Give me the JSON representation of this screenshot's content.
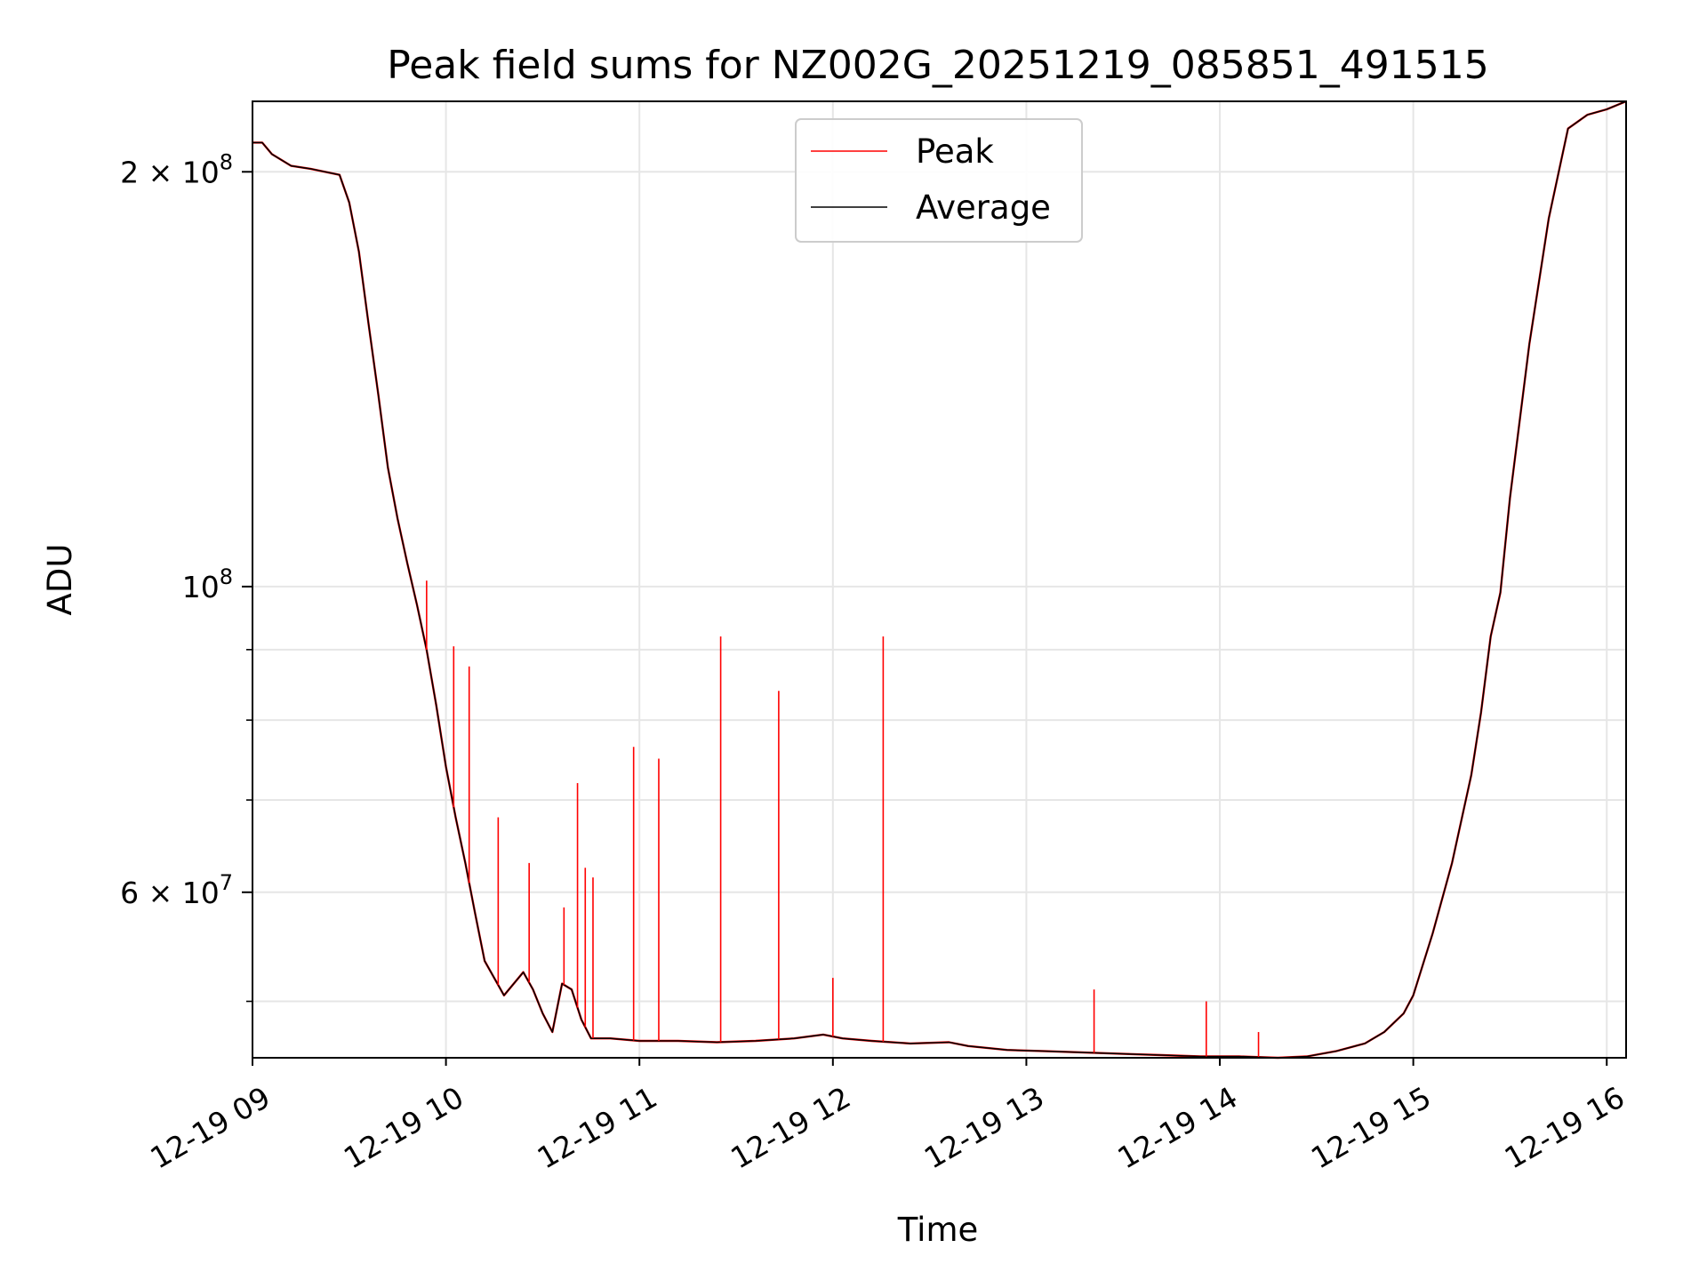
{
  "chart_data": {
    "type": "line",
    "title": "Peak field sums for NZ002G_20251219_085851_491515",
    "xlabel": "Time",
    "ylabel": "ADU",
    "yscale": "log",
    "xlim": [
      9.0,
      16.1
    ],
    "ylim": [
      45500000,
      225000000
    ],
    "grid": true,
    "legend_position": "top-center",
    "x_ticks": [
      {
        "value": 9,
        "label": "12-19 09"
      },
      {
        "value": 10,
        "label": "12-19 10"
      },
      {
        "value": 11,
        "label": "12-19 11"
      },
      {
        "value": 12,
        "label": "12-19 12"
      },
      {
        "value": 13,
        "label": "12-19 13"
      },
      {
        "value": 14,
        "label": "12-19 14"
      },
      {
        "value": 15,
        "label": "12-19 15"
      },
      {
        "value": 16,
        "label": "12-19 16"
      }
    ],
    "y_ticks_labeled": [
      {
        "value": 200000000,
        "base": "2 × 10",
        "exp": "8"
      },
      {
        "value": 100000000,
        "base": "10",
        "exp": "8"
      },
      {
        "value": 60000000,
        "base": "6 × 10",
        "exp": "7"
      }
    ],
    "y_ticks_minor": [
      50000000,
      70000000,
      80000000,
      90000000
    ],
    "series": [
      {
        "name": "Average",
        "color": "#000000",
        "x": [
          9.0,
          9.05,
          9.1,
          9.2,
          9.3,
          9.45,
          9.5,
          9.55,
          9.6,
          9.65,
          9.7,
          9.75,
          9.8,
          9.85,
          9.9,
          9.95,
          10.0,
          10.05,
          10.1,
          10.15,
          10.2,
          10.3,
          10.4,
          10.45,
          10.5,
          10.55,
          10.6,
          10.65,
          10.7,
          10.75,
          10.85,
          11.0,
          11.2,
          11.4,
          11.6,
          11.8,
          11.95,
          12.05,
          12.2,
          12.4,
          12.6,
          12.7,
          12.9,
          13.1,
          13.3,
          13.5,
          13.7,
          13.9,
          14.1,
          14.3,
          14.45,
          14.6,
          14.75,
          14.85,
          14.95,
          15.0,
          15.1,
          15.2,
          15.3,
          15.35,
          15.4,
          15.45,
          15.5,
          15.6,
          15.7,
          15.8,
          15.9,
          16.0,
          16.1
        ],
        "values": [
          210000000,
          210000000,
          206000000,
          202000000,
          201000000,
          199000000,
          190000000,
          175000000,
          155000000,
          138000000,
          122000000,
          112000000,
          104000000,
          97000000,
          90000000,
          82000000,
          74000000,
          68000000,
          63000000,
          58000000,
          53500000,
          50500000,
          52500000,
          51000000,
          49000000,
          47500000,
          51500000,
          51000000,
          48500000,
          47000000,
          47000000,
          46800000,
          46800000,
          46700000,
          46800000,
          47000000,
          47300000,
          47000000,
          46800000,
          46600000,
          46700000,
          46400000,
          46100000,
          46000000,
          45900000,
          45800000,
          45700000,
          45600000,
          45600000,
          45500000,
          45600000,
          46000000,
          46600000,
          47500000,
          49000000,
          50500000,
          56000000,
          63000000,
          73000000,
          81000000,
          92000000,
          99000000,
          116000000,
          150000000,
          185000000,
          215000000,
          220000000,
          222000000,
          225000000
        ]
      },
      {
        "name": "Peak",
        "color": "#ff0000",
        "spikes": [
          {
            "x": 9.9,
            "value": 101000000
          },
          {
            "x": 10.04,
            "value": 90500000
          },
          {
            "x": 10.12,
            "value": 87500000
          },
          {
            "x": 10.27,
            "value": 68000000
          },
          {
            "x": 10.43,
            "value": 63000000
          },
          {
            "x": 10.61,
            "value": 58500000
          },
          {
            "x": 10.68,
            "value": 72000000
          },
          {
            "x": 10.72,
            "value": 62500000
          },
          {
            "x": 10.76,
            "value": 61500000
          },
          {
            "x": 10.97,
            "value": 76500000
          },
          {
            "x": 11.1,
            "value": 75000000
          },
          {
            "x": 11.42,
            "value": 92000000
          },
          {
            "x": 11.72,
            "value": 84000000
          },
          {
            "x": 12.0,
            "value": 52000000
          },
          {
            "x": 12.26,
            "value": 92000000
          },
          {
            "x": 13.35,
            "value": 51000000
          },
          {
            "x": 13.93,
            "value": 50000000
          },
          {
            "x": 14.2,
            "value": 47500000
          }
        ]
      }
    ]
  }
}
